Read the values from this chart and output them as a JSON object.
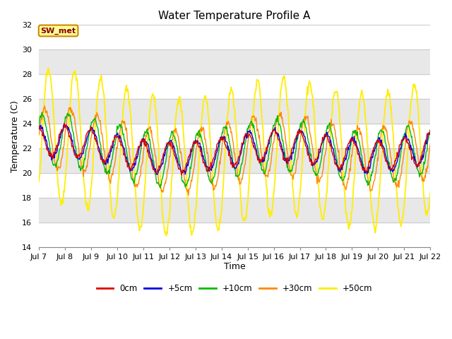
{
  "title": "Water Temperature Profile A",
  "xlabel": "Time",
  "ylabel": "Temperature (C)",
  "ylim": [
    14,
    32
  ],
  "yticks": [
    14,
    16,
    18,
    20,
    22,
    24,
    26,
    28,
    30,
    32
  ],
  "x_tick_labels": [
    "Jul 7",
    "Jul 8",
    "Jul 9",
    "Jul 10",
    "Jul 11",
    "Jul 12",
    "Jul 13",
    "Jul 14",
    "Jul 15",
    "Jul 16",
    "Jul 17",
    "Jul 18",
    "Jul 19",
    "Jul 20",
    "Jul 21",
    "Jul 22"
  ],
  "colors": {
    "0cm": "#dd0000",
    "+5cm": "#0000dd",
    "+10cm": "#00bb00",
    "+30cm": "#ff8800",
    "+50cm": "#ffee00"
  },
  "legend_labels": [
    "0cm",
    "+5cm",
    "+10cm",
    "+30cm",
    "+50cm"
  ],
  "legend_colors": [
    "#dd0000",
    "#0000dd",
    "#00bb00",
    "#ff8800",
    "#ffee00"
  ],
  "annotation_text": "SW_met",
  "annotation_bg": "#ffff99",
  "annotation_border": "#cc8800",
  "annotation_text_color": "#880000",
  "fig_bg": "#ffffff",
  "plot_bg": "#ffffff",
  "band_color": "#e8e8e8",
  "grid_color": "#cccccc",
  "title_fontsize": 11,
  "axis_label_fontsize": 9,
  "tick_fontsize": 8,
  "n_days": 15,
  "n_pts": 720
}
